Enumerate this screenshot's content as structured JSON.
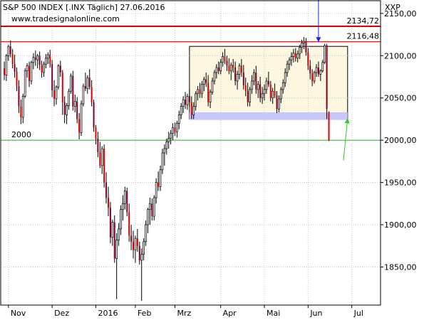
{
  "header": {
    "title": "S&P 500 INDEX [.INX Täglich] 27.06.2016",
    "url": "www.tradesignalonline.com",
    "currency": "XXP"
  },
  "chart_data": {
    "type": "candlestick",
    "title": "S&P 500 INDEX [.INX Täglich] 27.06.2016",
    "ylim": [
      1805,
      2165
    ],
    "y_ticks": [
      {
        "value": 2150,
        "label": "2150,00"
      },
      {
        "value": 2100,
        "label": "2100,00"
      },
      {
        "value": 2050,
        "label": "2050,00"
      },
      {
        "value": 2000,
        "label": "2000,00"
      },
      {
        "value": 1950,
        "label": "1950,00"
      },
      {
        "value": 1900,
        "label": "1900,00"
      },
      {
        "value": 1850,
        "label": "1850,00"
      }
    ],
    "x_ticks": [
      {
        "label": "Nov",
        "index": 2
      },
      {
        "label": "Dez",
        "index": 23
      },
      {
        "label": "2016",
        "index": 44
      },
      {
        "label": "Feb",
        "index": 63
      },
      {
        "label": "Mrz",
        "index": 82
      },
      {
        "label": "Apr",
        "index": 104
      },
      {
        "label": "Mai",
        "index": 125
      },
      {
        "label": "Jun",
        "index": 146
      },
      {
        "label": "Jul",
        "index": 167
      }
    ],
    "hlines": [
      {
        "value": 2134.72,
        "label": "2134,72",
        "color": "#e00000"
      },
      {
        "value": 2116.48,
        "label": "2116,48",
        "color": "#e00000"
      },
      {
        "value": 2000,
        "label": "2000",
        "color": "#2ec82e"
      }
    ],
    "range_box": {
      "start_index": 89,
      "end_index": 165,
      "top": 2111,
      "bottom": 2025,
      "fill": "#fdf6e0"
    },
    "support_band": {
      "start_index": 89,
      "end_index": 165,
      "top": 2033,
      "bottom": 2024,
      "fill": "#c8c8f8"
    },
    "candles": [
      [
        2085,
        2093,
        2071,
        2077
      ],
      [
        2077,
        2102,
        2070,
        2100
      ],
      [
        2100,
        2113,
        2094,
        2111
      ],
      [
        2111,
        2118,
        2098,
        2102
      ],
      [
        2102,
        2108,
        2085,
        2090
      ],
      [
        2090,
        2101,
        2074,
        2081
      ],
      [
        2081,
        2086,
        2058,
        2064
      ],
      [
        2064,
        2071,
        2032,
        2040
      ],
      [
        2040,
        2048,
        2019,
        2027
      ],
      [
        2027,
        2055,
        2020,
        2052
      ],
      [
        2052,
        2085,
        2050,
        2082
      ],
      [
        2082,
        2091,
        2074,
        2088
      ],
      [
        2088,
        2093,
        2063,
        2070
      ],
      [
        2070,
        2094,
        2066,
        2092
      ],
      [
        2092,
        2103,
        2084,
        2098
      ],
      [
        2098,
        2106,
        2088,
        2095
      ],
      [
        2095,
        2102,
        2085,
        2100
      ],
      [
        2100,
        2105,
        2083,
        2089
      ],
      [
        2089,
        2094,
        2074,
        2080
      ],
      [
        2080,
        2093,
        2075,
        2090
      ],
      [
        2090,
        2102,
        2085,
        2097
      ],
      [
        2097,
        2104,
        2090,
        2101
      ],
      [
        2101,
        2107,
        2086,
        2090
      ],
      [
        2090,
        2095,
        2051,
        2059
      ],
      [
        2059,
        2071,
        2040,
        2049
      ],
      [
        2049,
        2065,
        2042,
        2063
      ],
      [
        2063,
        2090,
        2060,
        2088
      ],
      [
        2088,
        2094,
        2075,
        2080
      ],
      [
        2080,
        2083,
        2030,
        2045
      ],
      [
        2045,
        2052,
        2020,
        2030
      ],
      [
        2030,
        2044,
        2019,
        2041
      ],
      [
        2041,
        2061,
        2036,
        2058
      ],
      [
        2058,
        2079,
        2055,
        2076
      ],
      [
        2076,
        2082,
        2035,
        2040
      ],
      [
        2040,
        2054,
        2033,
        2046
      ],
      [
        2046,
        2051,
        2020,
        2025
      ],
      [
        2025,
        2032,
        2001,
        2009
      ],
      [
        2009,
        2047,
        2005,
        2043
      ],
      [
        2043,
        2067,
        2040,
        2064
      ],
      [
        2064,
        2080,
        2058,
        2061
      ],
      [
        2061,
        2077,
        2055,
        2074
      ],
      [
        2074,
        2084,
        2060,
        2063
      ],
      [
        2063,
        2071,
        2040,
        2045
      ],
      [
        2045,
        2048,
        2010,
        2015
      ],
      [
        2015,
        2018,
        1995,
        2002
      ],
      [
        2002,
        2010,
        1980,
        1986
      ],
      [
        1986,
        1998,
        1967,
        1970
      ],
      [
        1970,
        1993,
        1960,
        1990
      ],
      [
        1990,
        1995,
        1944,
        1950
      ],
      [
        1950,
        1962,
        1925,
        1932
      ],
      [
        1932,
        1945,
        1910,
        1920
      ],
      [
        1920,
        1927,
        1878,
        1885
      ],
      [
        1885,
        1906,
        1875,
        1903
      ],
      [
        1903,
        1911,
        1855,
        1860
      ],
      [
        1860,
        1890,
        1812,
        1882
      ],
      [
        1882,
        1902,
        1875,
        1895
      ],
      [
        1895,
        1923,
        1888,
        1918
      ],
      [
        1918,
        1935,
        1905,
        1925
      ],
      [
        1925,
        1945,
        1918,
        1940
      ],
      [
        1940,
        1944,
        1910,
        1915
      ],
      [
        1915,
        1925,
        1880,
        1887
      ],
      [
        1887,
        1900,
        1870,
        1880
      ],
      [
        1880,
        1893,
        1860,
        1870
      ],
      [
        1870,
        1887,
        1855,
        1884
      ],
      [
        1884,
        1895,
        1868,
        1875
      ],
      [
        1875,
        1880,
        1853,
        1858
      ],
      [
        1858,
        1872,
        1810,
        1865
      ],
      [
        1865,
        1884,
        1858,
        1880
      ],
      [
        1880,
        1905,
        1875,
        1900
      ],
      [
        1900,
        1920,
        1890,
        1918
      ],
      [
        1918,
        1932,
        1900,
        1925
      ],
      [
        1925,
        1931,
        1905,
        1910
      ],
      [
        1910,
        1935,
        1905,
        1932
      ],
      [
        1932,
        1955,
        1925,
        1950
      ],
      [
        1950,
        1963,
        1940,
        1945
      ],
      [
        1945,
        1970,
        1940,
        1965
      ],
      [
        1965,
        1990,
        1960,
        1985
      ],
      [
        1985,
        1995,
        1970,
        1990
      ],
      [
        1990,
        2002,
        1983,
        1998
      ],
      [
        1998,
        2010,
        1990,
        2002
      ],
      [
        2002,
        2012,
        1995,
        2008
      ],
      [
        2008,
        2020,
        2000,
        2015
      ],
      [
        2015,
        2021,
        2005,
        2010
      ],
      [
        2010,
        2023,
        2003,
        2020
      ],
      [
        2020,
        2035,
        2013,
        2030
      ],
      [
        2030,
        2044,
        2025,
        2040
      ],
      [
        2040,
        2052,
        2032,
        2048
      ],
      [
        2048,
        2057,
        2037,
        2042
      ],
      [
        2042,
        2055,
        2036,
        2052
      ],
      [
        2052,
        2060,
        2040,
        2045
      ],
      [
        2045,
        2052,
        2025,
        2030
      ],
      [
        2030,
        2045,
        2025,
        2040
      ],
      [
        2040,
        2058,
        2035,
        2055
      ],
      [
        2055,
        2064,
        2047,
        2060
      ],
      [
        2060,
        2068,
        2050,
        2055
      ],
      [
        2055,
        2070,
        2050,
        2066
      ],
      [
        2066,
        2075,
        2058,
        2072
      ],
      [
        2072,
        2080,
        2063,
        2068
      ],
      [
        2068,
        2077,
        2040,
        2045
      ],
      [
        2045,
        2060,
        2038,
        2057
      ],
      [
        2057,
        2074,
        2054,
        2070
      ],
      [
        2070,
        2083,
        2066,
        2080
      ],
      [
        2080,
        2090,
        2073,
        2086
      ],
      [
        2086,
        2093,
        2078,
        2082
      ],
      [
        2082,
        2096,
        2078,
        2092
      ],
      [
        2092,
        2104,
        2087,
        2099
      ],
      [
        2099,
        2108,
        2090,
        2094
      ],
      [
        2094,
        2100,
        2082,
        2088
      ],
      [
        2088,
        2097,
        2078,
        2082
      ],
      [
        2082,
        2092,
        2071,
        2089
      ],
      [
        2089,
        2096,
        2080,
        2086
      ],
      [
        2086,
        2093,
        2065,
        2070
      ],
      [
        2070,
        2082,
        2060,
        2078
      ],
      [
        2078,
        2091,
        2072,
        2088
      ],
      [
        2088,
        2096,
        2075,
        2080
      ],
      [
        2080,
        2089,
        2060,
        2065
      ],
      [
        2065,
        2074,
        2052,
        2058
      ],
      [
        2058,
        2068,
        2040,
        2045
      ],
      [
        2045,
        2063,
        2040,
        2060
      ],
      [
        2060,
        2077,
        2055,
        2070
      ],
      [
        2070,
        2084,
        2065,
        2080
      ],
      [
        2080,
        2088,
        2055,
        2060
      ],
      [
        2060,
        2070,
        2050,
        2066
      ],
      [
        2066,
        2075,
        2045,
        2050
      ],
      [
        2050,
        2063,
        2043,
        2055
      ],
      [
        2055,
        2066,
        2047,
        2060
      ],
      [
        2060,
        2074,
        2055,
        2070
      ],
      [
        2070,
        2081,
        2063,
        2066
      ],
      [
        2066,
        2070,
        2046,
        2050
      ],
      [
        2050,
        2062,
        2043,
        2058
      ],
      [
        2058,
        2067,
        2050,
        2053
      ],
      [
        2053,
        2058,
        2032,
        2037
      ],
      [
        2037,
        2053,
        2033,
        2049
      ],
      [
        2049,
        2063,
        2044,
        2060
      ],
      [
        2060,
        2072,
        2055,
        2068
      ],
      [
        2068,
        2085,
        2063,
        2080
      ],
      [
        2080,
        2094,
        2075,
        2090
      ],
      [
        2090,
        2098,
        2083,
        2095
      ],
      [
        2095,
        2104,
        2088,
        2099
      ],
      [
        2099,
        2108,
        2092,
        2103
      ],
      [
        2103,
        2109,
        2093,
        2097
      ],
      [
        2097,
        2106,
        2092,
        2102
      ],
      [
        2102,
        2113,
        2096,
        2110
      ],
      [
        2110,
        2119,
        2103,
        2115
      ],
      [
        2115,
        2122,
        2108,
        2117
      ],
      [
        2117,
        2121,
        2100,
        2104
      ],
      [
        2104,
        2109,
        2083,
        2088
      ],
      [
        2088,
        2095,
        2072,
        2079
      ],
      [
        2079,
        2084,
        2064,
        2070
      ],
      [
        2070,
        2082,
        2067,
        2080
      ],
      [
        2080,
        2090,
        2075,
        2086
      ],
      [
        2086,
        2093,
        2075,
        2078
      ],
      [
        2078,
        2084,
        2070,
        2082
      ],
      [
        2082,
        2095,
        2080,
        2092
      ],
      [
        2092,
        2114,
        2090,
        2112
      ],
      [
        2112,
        2114,
        2025,
        2037
      ],
      [
        2033,
        2034,
        1999,
        2000
      ]
    ],
    "annotations": [
      {
        "type": "arrow",
        "color": "#2020e0",
        "from_index": 151,
        "from_value": 2172,
        "to_index": 151,
        "to_value": 2116
      },
      {
        "type": "arrow",
        "color": "#2ec82e",
        "from_index": 163,
        "from_value": 1976,
        "to_index": 165,
        "to_value": 2026
      }
    ],
    "colors": {
      "up_fill": "#ffffff",
      "down_fill": "#e00000",
      "down_alt_fill": "#800020",
      "wick": "#000000",
      "grid": "#c8c8c8"
    }
  }
}
